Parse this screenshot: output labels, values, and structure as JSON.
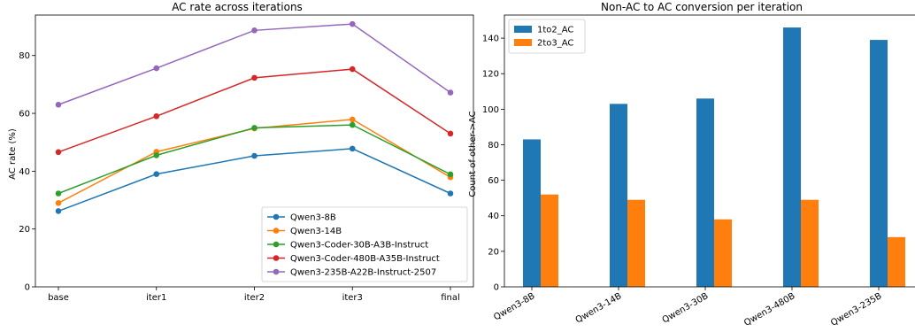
{
  "chart_data": [
    {
      "type": "line",
      "title": "AC rate across iterations",
      "xlabel": "",
      "ylabel": "AC rate (%)",
      "categories": [
        "base",
        "iter1",
        "iter2",
        "iter3",
        "final"
      ],
      "ylim": [
        0,
        94
      ],
      "yticks": [
        0,
        20,
        40,
        60,
        80
      ],
      "grid": false,
      "legend_position": "lower-right",
      "series": [
        {
          "name": "Qwen3-8B",
          "color": "#1f77b4",
          "values": [
            26.2,
            39.0,
            45.3,
            47.8,
            32.3
          ]
        },
        {
          "name": "Qwen3-14B",
          "color": "#ff7f0e",
          "values": [
            29.0,
            46.7,
            54.8,
            57.9,
            37.9
          ]
        },
        {
          "name": "Qwen3-Coder-30B-A3B-Instruct",
          "color": "#2ca02c",
          "values": [
            32.3,
            45.5,
            55.0,
            56.0,
            38.9
          ]
        },
        {
          "name": "Qwen3-Coder-480B-A35B-Instruct",
          "color": "#d62728",
          "values": [
            46.6,
            59.0,
            72.3,
            75.3,
            53.0
          ]
        },
        {
          "name": "Qwen3-235B-A22B-Instruct-2507",
          "color": "#9467bd",
          "values": [
            63.0,
            75.6,
            88.7,
            90.9,
            67.2
          ]
        }
      ]
    },
    {
      "type": "bar",
      "title": "Non-AC to AC conversion per iteration",
      "xlabel": "",
      "ylabel": "Count of other->AC",
      "categories": [
        "Qwen3-8B",
        "Qwen3-14B",
        "Qwen3-30B",
        "Qwen3-480B",
        "Qwen3-235B"
      ],
      "ylim": [
        0,
        153
      ],
      "yticks": [
        0,
        20,
        40,
        60,
        80,
        100,
        120,
        140
      ],
      "grid": false,
      "legend_position": "upper-left",
      "series": [
        {
          "name": "1to2_AC",
          "color": "#1f77b4",
          "values": [
            83,
            103,
            106,
            146,
            139
          ]
        },
        {
          "name": "2to3_AC",
          "color": "#ff7f0e",
          "values": [
            52,
            49,
            38,
            49,
            28
          ]
        }
      ]
    }
  ]
}
